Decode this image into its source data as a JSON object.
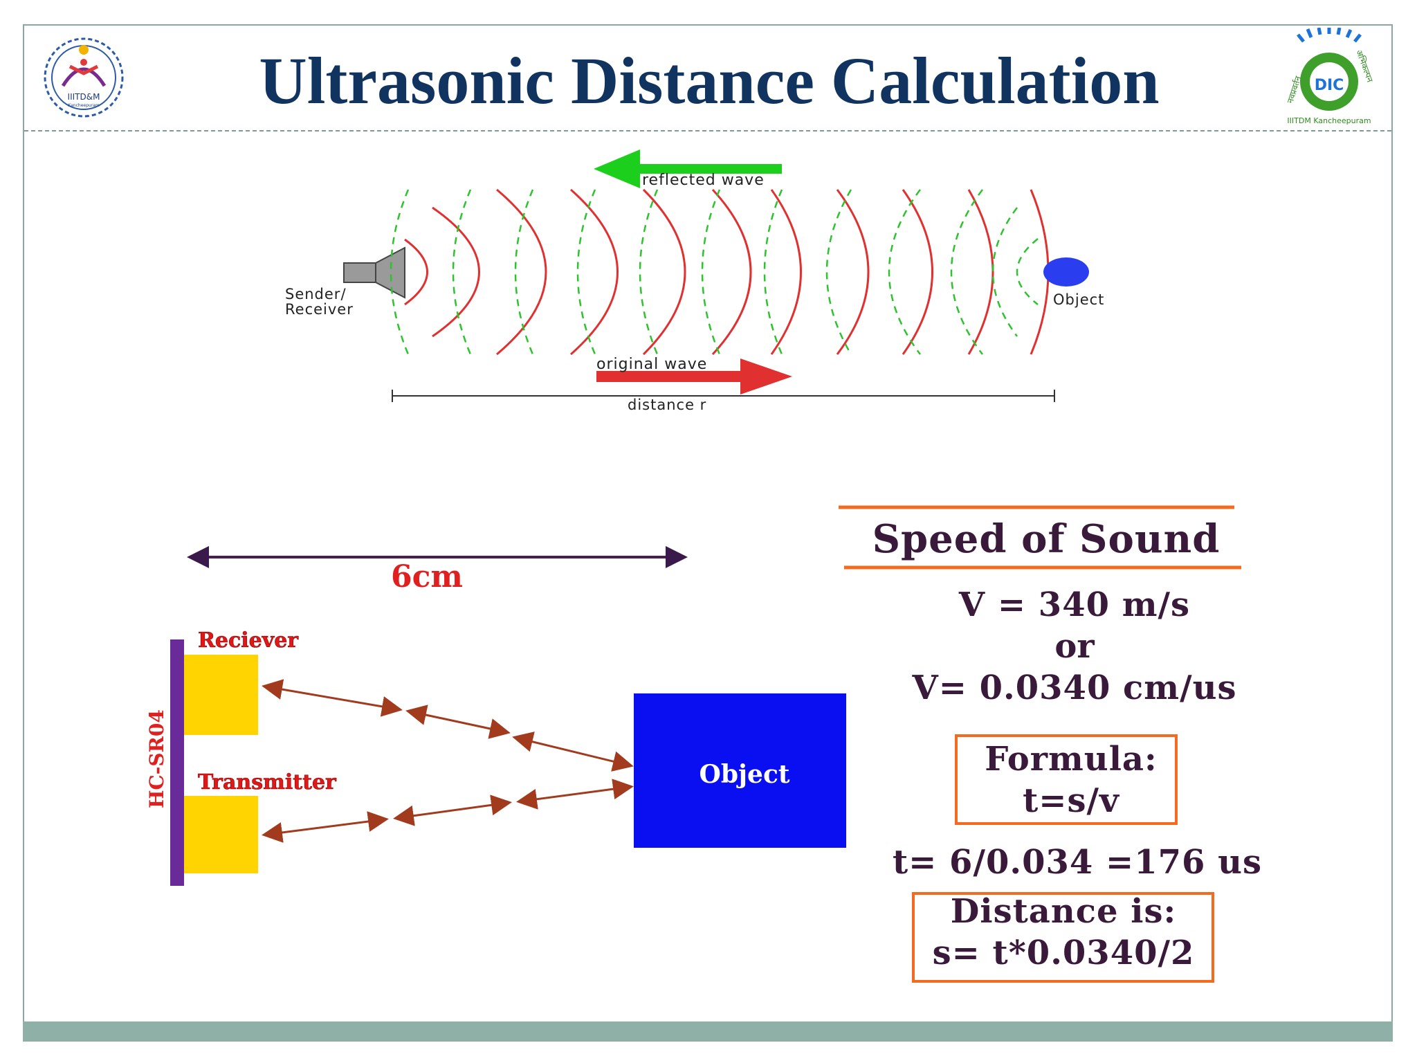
{
  "title": "Ultrasonic Distance Calculation",
  "logo_left": {
    "text": "IIITD&M",
    "subtext": "Kancheepuram"
  },
  "logo_right": {
    "text": "DIC",
    "subtext": "IIITDM Kancheepuram",
    "hindi_left": "नवप्रवर्तन",
    "hindi_right": "अभिकल्पन"
  },
  "top_diagram": {
    "reflected_label": "reflected wave",
    "original_label": "original wave",
    "sender_label_1": "Sender/",
    "sender_label_2": "Receiver",
    "object_label": "Object",
    "distance_label": "distance r"
  },
  "bottom_diagram": {
    "distance_label": "6cm",
    "receiver_label": "Reciever",
    "transmitter_label": "Transmitter",
    "sensor_label": "HC-SR04",
    "object_label": "Object"
  },
  "formulas": {
    "speed_heading": "Speed of Sound",
    "v1": "V = 340 m/s",
    "or": "or",
    "v2": "V= 0.0340 cm/us",
    "formula_label": "Formula:",
    "formula": "t=s/v",
    "t_calc": "t= 6/0.034 =176 us",
    "distance_label": "Distance is:",
    "distance_formula": "s= t*0.0340/2"
  },
  "colors": {
    "title": "#10345f",
    "accent_orange": "#f26b21",
    "wave_red": "#e0302f",
    "wave_green": "#2ec22e",
    "object_blue": "#0a0ff2",
    "sensor_yellow": "#ffd400",
    "sensor_bar": "#6a2b9a",
    "arrow_brown": "#a23b1e"
  }
}
